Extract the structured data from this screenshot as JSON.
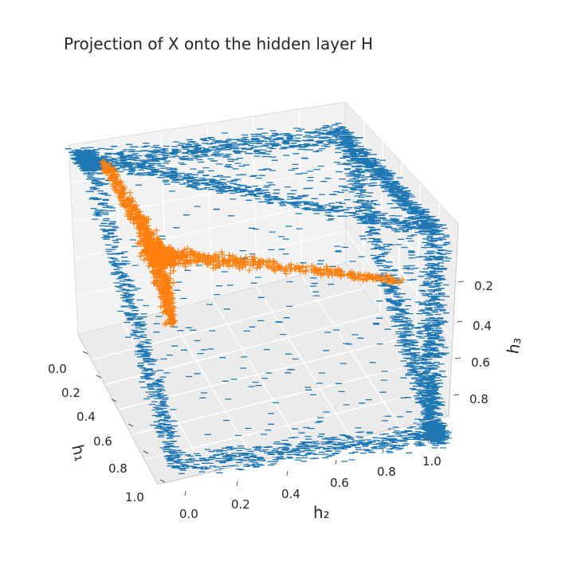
{
  "chart_data": {
    "type": "scatter",
    "title": "Projection of X onto the hidden layer H",
    "projection": "3d",
    "grid": true,
    "legend": "none",
    "axes": {
      "x": {
        "label": "h₁",
        "ticks": [
          "0.0",
          "0.2",
          "0.4",
          "0.6",
          "0.8",
          "1.0"
        ],
        "range": [
          0,
          1
        ]
      },
      "y": {
        "label": "h₂",
        "ticks": [
          "0.0",
          "0.2",
          "0.4",
          "0.6",
          "0.8",
          "1.0"
        ],
        "range": [
          0,
          1
        ]
      },
      "z": {
        "label": "h₃",
        "ticks": [
          "0.2",
          "0.4",
          "0.6",
          "0.8"
        ],
        "range": [
          0,
          1
        ]
      }
    },
    "series": [
      {
        "marker": "_",
        "color": "#1f77b4",
        "description_points": "dense points along the 9 cube edges not incident to the origin corner; sparse points spread over the three far faces",
        "corners": [
          [
            1,
            0,
            0
          ],
          [
            0,
            1,
            0
          ],
          [
            0,
            0,
            1
          ],
          [
            1,
            1,
            0
          ],
          [
            1,
            0,
            1
          ],
          [
            0,
            1,
            1
          ],
          [
            1,
            1,
            1
          ]
        ],
        "count_approx": 9000
      },
      {
        "marker": "+",
        "color": "#ff7f0e",
        "description_points": "three-armed star from a center near (0.1,0.1,0.6) along three arms",
        "center": [
          0.1,
          0.1,
          0.6
        ],
        "arm_ends": [
          [
            0.0,
            0.05,
            1.0
          ],
          [
            0.2,
            0.05,
            0.3
          ],
          [
            0.05,
            0.9,
            0.7
          ]
        ],
        "count_approx": 1200
      }
    ]
  }
}
